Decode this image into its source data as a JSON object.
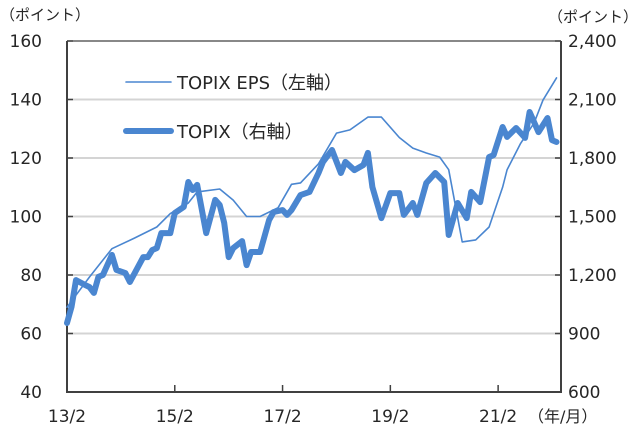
{
  "chart_data": {
    "type": "line",
    "left_unit_label": "（ポイント）",
    "right_unit_label": "（ポイント）",
    "x_unit_label": "（年/月）",
    "x_ticks": [
      {
        "date": "2013-02",
        "label": "13/2"
      },
      {
        "date": "2015-02",
        "label": "15/2"
      },
      {
        "date": "2017-02",
        "label": "17/2"
      },
      {
        "date": "2019-02",
        "label": "19/2"
      },
      {
        "date": "2021-02",
        "label": "21/2"
      }
    ],
    "xlim": [
      "2013-02",
      "2022-04"
    ],
    "y_left": {
      "lim": [
        40,
        160
      ],
      "ticks": [
        40,
        60,
        80,
        100,
        120,
        140,
        160
      ],
      "tick_labels": [
        "40",
        "60",
        "80",
        "100",
        "120",
        "140",
        "160"
      ]
    },
    "y_right": {
      "lim": [
        600,
        2400
      ],
      "ticks": [
        600,
        900,
        1200,
        1500,
        1800,
        2100,
        2400
      ],
      "tick_labels": [
        "600",
        "900",
        "1,200",
        "1,500",
        "1,800",
        "2,100",
        "2,400"
      ]
    },
    "grid": true,
    "legend_placement": "top-left",
    "colors": {
      "line": "#4a86d0",
      "axis": "#404040",
      "grid": "#d4d4d4"
    },
    "series": [
      {
        "name": "TOPIX EPS（左軸）",
        "axis": "left",
        "style": "thin",
        "points": [
          [
            "2013-02",
            69
          ],
          [
            "2013-07",
            79.3
          ],
          [
            "2013-12",
            89
          ],
          [
            "2014-05",
            92.6
          ],
          [
            "2014-10",
            96.4
          ],
          [
            "2015-01",
            101
          ],
          [
            "2015-05",
            104.6
          ],
          [
            "2015-07",
            108.4
          ],
          [
            "2015-12",
            109.4
          ],
          [
            "2016-03",
            105.6
          ],
          [
            "2016-06",
            100
          ],
          [
            "2016-09",
            100
          ],
          [
            "2017-01",
            103
          ],
          [
            "2017-04",
            111
          ],
          [
            "2017-06",
            111.5
          ],
          [
            "2017-10",
            118
          ],
          [
            "2018-02",
            128.5
          ],
          [
            "2018-05",
            129.6
          ],
          [
            "2018-09",
            134
          ],
          [
            "2018-12",
            134
          ],
          [
            "2019-04",
            127
          ],
          [
            "2019-07",
            123.4
          ],
          [
            "2019-10",
            121.7
          ],
          [
            "2020-01",
            120.3
          ],
          [
            "2020-03",
            116
          ],
          [
            "2020-06",
            91.3
          ],
          [
            "2020-09",
            92
          ],
          [
            "2020-12",
            96.4
          ],
          [
            "2021-03",
            110
          ],
          [
            "2021-04",
            116
          ],
          [
            "2021-07",
            125
          ],
          [
            "2021-10",
            132
          ],
          [
            "2021-12",
            139.8
          ],
          [
            "2022-03",
            147.4
          ]
        ]
      },
      {
        "name": "TOPIX（右軸）",
        "axis": "right",
        "style": "thick",
        "points": [
          [
            "2013-02",
            954
          ],
          [
            "2013-03",
            1036
          ],
          [
            "2013-04",
            1174
          ],
          [
            "2013-06",
            1149
          ],
          [
            "2013-07",
            1138
          ],
          [
            "2013-08",
            1108
          ],
          [
            "2013-09",
            1190
          ],
          [
            "2013-10",
            1200
          ],
          [
            "2013-12",
            1303
          ],
          [
            "2014-01",
            1226
          ],
          [
            "2014-03",
            1210
          ],
          [
            "2014-04",
            1164
          ],
          [
            "2014-07",
            1292
          ],
          [
            "2014-08",
            1292
          ],
          [
            "2014-09",
            1328
          ],
          [
            "2014-10",
            1338
          ],
          [
            "2014-11",
            1415
          ],
          [
            "2015-01",
            1415
          ],
          [
            "2015-02",
            1518
          ],
          [
            "2015-04",
            1549
          ],
          [
            "2015-05",
            1677
          ],
          [
            "2015-06",
            1636
          ],
          [
            "2015-07",
            1662
          ],
          [
            "2015-09",
            1415
          ],
          [
            "2015-11",
            1585
          ],
          [
            "2015-12",
            1559
          ],
          [
            "2016-01",
            1467
          ],
          [
            "2016-02",
            1292
          ],
          [
            "2016-03",
            1338
          ],
          [
            "2016-05",
            1374
          ],
          [
            "2016-06",
            1251
          ],
          [
            "2016-07",
            1318
          ],
          [
            "2016-09",
            1318
          ],
          [
            "2016-11",
            1482
          ],
          [
            "2016-12",
            1523
          ],
          [
            "2017-02",
            1533
          ],
          [
            "2017-03",
            1508
          ],
          [
            "2017-04",
            1533
          ],
          [
            "2017-06",
            1610
          ],
          [
            "2017-08",
            1626
          ],
          [
            "2017-10",
            1723
          ],
          [
            "2017-11",
            1780
          ],
          [
            "2018-01",
            1841
          ],
          [
            "2018-03",
            1723
          ],
          [
            "2018-04",
            1780
          ],
          [
            "2018-06",
            1738
          ],
          [
            "2018-08",
            1764
          ],
          [
            "2018-09",
            1826
          ],
          [
            "2018-10",
            1651
          ],
          [
            "2018-12",
            1492
          ],
          [
            "2019-02",
            1620
          ],
          [
            "2019-04",
            1620
          ],
          [
            "2019-05",
            1508
          ],
          [
            "2019-07",
            1569
          ],
          [
            "2019-08",
            1508
          ],
          [
            "2019-10",
            1672
          ],
          [
            "2019-12",
            1723
          ],
          [
            "2020-02",
            1677
          ],
          [
            "2020-03",
            1405
          ],
          [
            "2020-05",
            1569
          ],
          [
            "2020-07",
            1492
          ],
          [
            "2020-08",
            1626
          ],
          [
            "2020-10",
            1574
          ],
          [
            "2020-12",
            1805
          ],
          [
            "2021-01",
            1815
          ],
          [
            "2021-03",
            1959
          ],
          [
            "2021-04",
            1908
          ],
          [
            "2021-06",
            1954
          ],
          [
            "2021-08",
            1903
          ],
          [
            "2021-09",
            2036
          ],
          [
            "2021-11",
            1933
          ],
          [
            "2022-01",
            2005
          ],
          [
            "2022-02",
            1892
          ],
          [
            "2022-03",
            1882
          ]
        ]
      }
    ]
  }
}
